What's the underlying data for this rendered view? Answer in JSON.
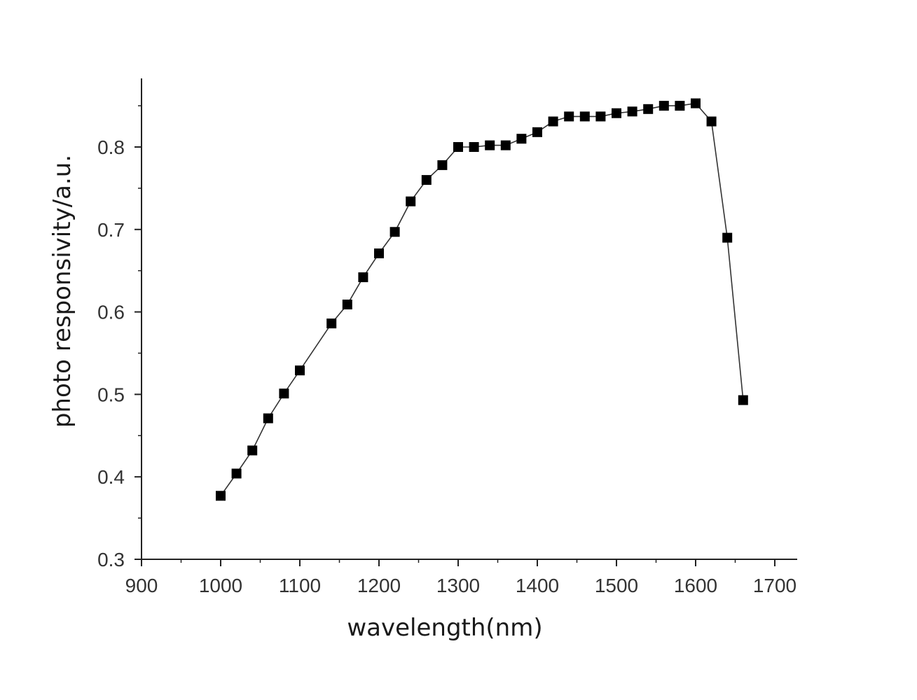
{
  "chart_data": {
    "type": "line",
    "title": "",
    "xlabel": "wavelength(nm)",
    "ylabel": "photo responsivity/a.u.",
    "xlim": [
      900,
      1700
    ],
    "ylim": [
      0.3,
      0.88
    ],
    "x_ticks": [
      900,
      1000,
      1100,
      1200,
      1300,
      1400,
      1500,
      1600,
      1700
    ],
    "x_tick_labels": [
      "900",
      "1000",
      "1100",
      "1200",
      "1300",
      "1400",
      "1500",
      "1600",
      "1700"
    ],
    "y_ticks": [
      0.3,
      0.4,
      0.5,
      0.6,
      0.7,
      0.8
    ],
    "y_tick_labels": [
      "0.3",
      "0.4",
      "0.5",
      "0.6",
      "0.7",
      "0.8"
    ],
    "grid": false,
    "marker": "square",
    "series": [
      {
        "name": "photo responsivity",
        "color": "#000000",
        "x": [
          1000,
          1020,
          1040,
          1060,
          1080,
          1100,
          1140,
          1160,
          1180,
          1200,
          1220,
          1240,
          1260,
          1280,
          1300,
          1320,
          1340,
          1360,
          1380,
          1400,
          1420,
          1440,
          1460,
          1480,
          1500,
          1520,
          1540,
          1560,
          1580,
          1600,
          1620,
          1640,
          1660
        ],
        "values": [
          0.377,
          0.404,
          0.432,
          0.471,
          0.501,
          0.529,
          0.586,
          0.609,
          0.642,
          0.671,
          0.697,
          0.734,
          0.76,
          0.778,
          0.8,
          0.8,
          0.802,
          0.802,
          0.81,
          0.818,
          0.831,
          0.837,
          0.837,
          0.837,
          0.841,
          0.843,
          0.846,
          0.85,
          0.85,
          0.853,
          0.831,
          0.69,
          0.493
        ]
      }
    ]
  }
}
